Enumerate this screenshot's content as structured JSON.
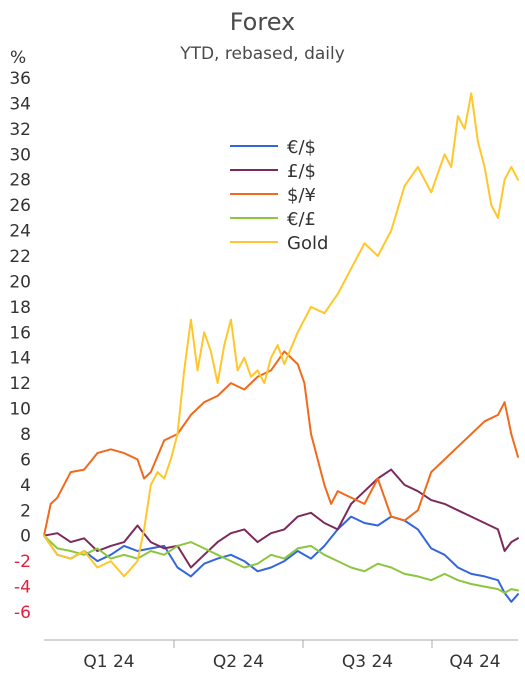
{
  "chart_data": {
    "type": "line",
    "title": "Forex",
    "subtitle": "YTD, rebased, daily",
    "ylabel": "%",
    "xlabel": "",
    "ylim": [
      -6,
      36
    ],
    "yticks": [
      -6,
      -4,
      -2,
      0,
      2,
      4,
      6,
      8,
      10,
      12,
      14,
      16,
      18,
      20,
      22,
      24,
      26,
      28,
      30,
      32,
      34,
      36
    ],
    "negative_tick_color": "#e0203c",
    "positive_tick_color": "#333333",
    "x_categories": [
      "Q1 24",
      "Q2 24",
      "Q3 24",
      "Q4 24"
    ],
    "x_range_days": [
      0,
      355
    ],
    "grid": false,
    "legend_position": "top-center",
    "series": [
      {
        "name": "€/$",
        "color": "#3366dd",
        "x": [
          0,
          10,
          20,
          30,
          40,
          50,
          60,
          70,
          80,
          90,
          100,
          110,
          120,
          130,
          140,
          150,
          160,
          170,
          180,
          190,
          200,
          210,
          220,
          230,
          240,
          250,
          260,
          270,
          280,
          290,
          300,
          310,
          320,
          330,
          340,
          345,
          350,
          355
        ],
        "y": [
          0,
          -1.5,
          -1.8,
          -1.2,
          -2.0,
          -1.5,
          -0.8,
          -1.2,
          -1.0,
          -0.8,
          -2.5,
          -3.2,
          -2.2,
          -1.8,
          -1.5,
          -2.0,
          -2.8,
          -2.5,
          -2.0,
          -1.2,
          -1.8,
          -0.8,
          0.5,
          1.5,
          1.0,
          0.8,
          1.5,
          1.2,
          0.5,
          -1.0,
          -1.5,
          -2.5,
          -3.0,
          -3.2,
          -3.5,
          -4.5,
          -5.2,
          -4.6
        ]
      },
      {
        "name": "£/$",
        "color": "#7b2a5e",
        "x": [
          0,
          10,
          20,
          30,
          40,
          50,
          60,
          70,
          80,
          90,
          100,
          110,
          120,
          130,
          140,
          150,
          160,
          170,
          180,
          190,
          200,
          210,
          220,
          230,
          240,
          250,
          260,
          270,
          280,
          290,
          300,
          310,
          320,
          330,
          340,
          345,
          350,
          355
        ],
        "y": [
          0,
          0.2,
          -0.5,
          -0.2,
          -1.2,
          -0.8,
          -0.5,
          0.8,
          -0.5,
          -1.0,
          -0.8,
          -2.5,
          -1.5,
          -0.5,
          0.2,
          0.5,
          -0.5,
          0.2,
          0.5,
          1.5,
          1.8,
          1.0,
          0.5,
          2.5,
          3.5,
          4.5,
          5.2,
          4.0,
          3.5,
          2.8,
          2.5,
          2.0,
          1.5,
          1.0,
          0.5,
          -1.2,
          -0.5,
          -0.2
        ]
      },
      {
        "name": "$/¥",
        "color": "#f06a1e",
        "x": [
          0,
          5,
          10,
          20,
          30,
          40,
          50,
          60,
          70,
          75,
          80,
          90,
          100,
          110,
          120,
          130,
          140,
          150,
          160,
          170,
          180,
          190,
          195,
          200,
          210,
          215,
          220,
          230,
          240,
          250,
          260,
          270,
          280,
          290,
          300,
          310,
          320,
          330,
          340,
          345,
          350,
          355
        ],
        "y": [
          0,
          2.5,
          3.0,
          5.0,
          5.2,
          6.5,
          6.8,
          6.5,
          6.0,
          4.5,
          5.0,
          7.5,
          8.0,
          9.5,
          10.5,
          11.0,
          12.0,
          11.5,
          12.5,
          13.0,
          14.5,
          13.5,
          12.0,
          8.0,
          4.0,
          2.5,
          3.5,
          3.0,
          2.5,
          4.5,
          1.5,
          1.2,
          2.0,
          5.0,
          6.0,
          7.0,
          8.0,
          9.0,
          9.5,
          10.5,
          8.0,
          6.2
        ]
      },
      {
        "name": "€/£",
        "color": "#8cc63f",
        "x": [
          0,
          10,
          20,
          30,
          40,
          50,
          60,
          70,
          80,
          90,
          100,
          110,
          120,
          130,
          140,
          150,
          160,
          170,
          180,
          190,
          200,
          210,
          220,
          230,
          240,
          250,
          260,
          270,
          280,
          290,
          300,
          310,
          320,
          330,
          340,
          345,
          350,
          355
        ],
        "y": [
          0,
          -1.0,
          -1.2,
          -1.5,
          -1.0,
          -1.8,
          -1.5,
          -1.8,
          -1.2,
          -1.5,
          -0.8,
          -0.5,
          -1.0,
          -1.5,
          -2.0,
          -2.5,
          -2.2,
          -1.5,
          -1.8,
          -1.0,
          -0.8,
          -1.5,
          -2.0,
          -2.5,
          -2.8,
          -2.2,
          -2.5,
          -3.0,
          -3.2,
          -3.5,
          -3.0,
          -3.5,
          -3.8,
          -4.0,
          -4.2,
          -4.5,
          -4.2,
          -4.3
        ]
      },
      {
        "name": "Gold",
        "color": "#ffc72c",
        "x": [
          0,
          10,
          20,
          30,
          40,
          50,
          60,
          70,
          75,
          80,
          85,
          90,
          95,
          100,
          105,
          110,
          115,
          120,
          125,
          130,
          135,
          140,
          145,
          150,
          155,
          160,
          165,
          170,
          175,
          180,
          190,
          200,
          210,
          220,
          230,
          240,
          250,
          260,
          270,
          280,
          290,
          300,
          305,
          310,
          315,
          320,
          325,
          330,
          335,
          340,
          345,
          350,
          355
        ],
        "y": [
          0,
          -1.5,
          -1.8,
          -1.2,
          -2.5,
          -2.0,
          -3.2,
          -2.0,
          0.5,
          4.0,
          5.0,
          4.5,
          6.0,
          8.0,
          13.0,
          17.0,
          13.0,
          16.0,
          14.5,
          12.0,
          15.0,
          17.0,
          13.0,
          14.0,
          12.5,
          13.0,
          12.0,
          14.0,
          15.0,
          13.5,
          16.0,
          18.0,
          17.5,
          19.0,
          21.0,
          23.0,
          22.0,
          24.0,
          27.5,
          29.0,
          27.0,
          30.0,
          29.0,
          33.0,
          32.0,
          34.8,
          31.0,
          29.0,
          26.0,
          25.0,
          28.0,
          29.0,
          28.0
        ]
      }
    ]
  }
}
